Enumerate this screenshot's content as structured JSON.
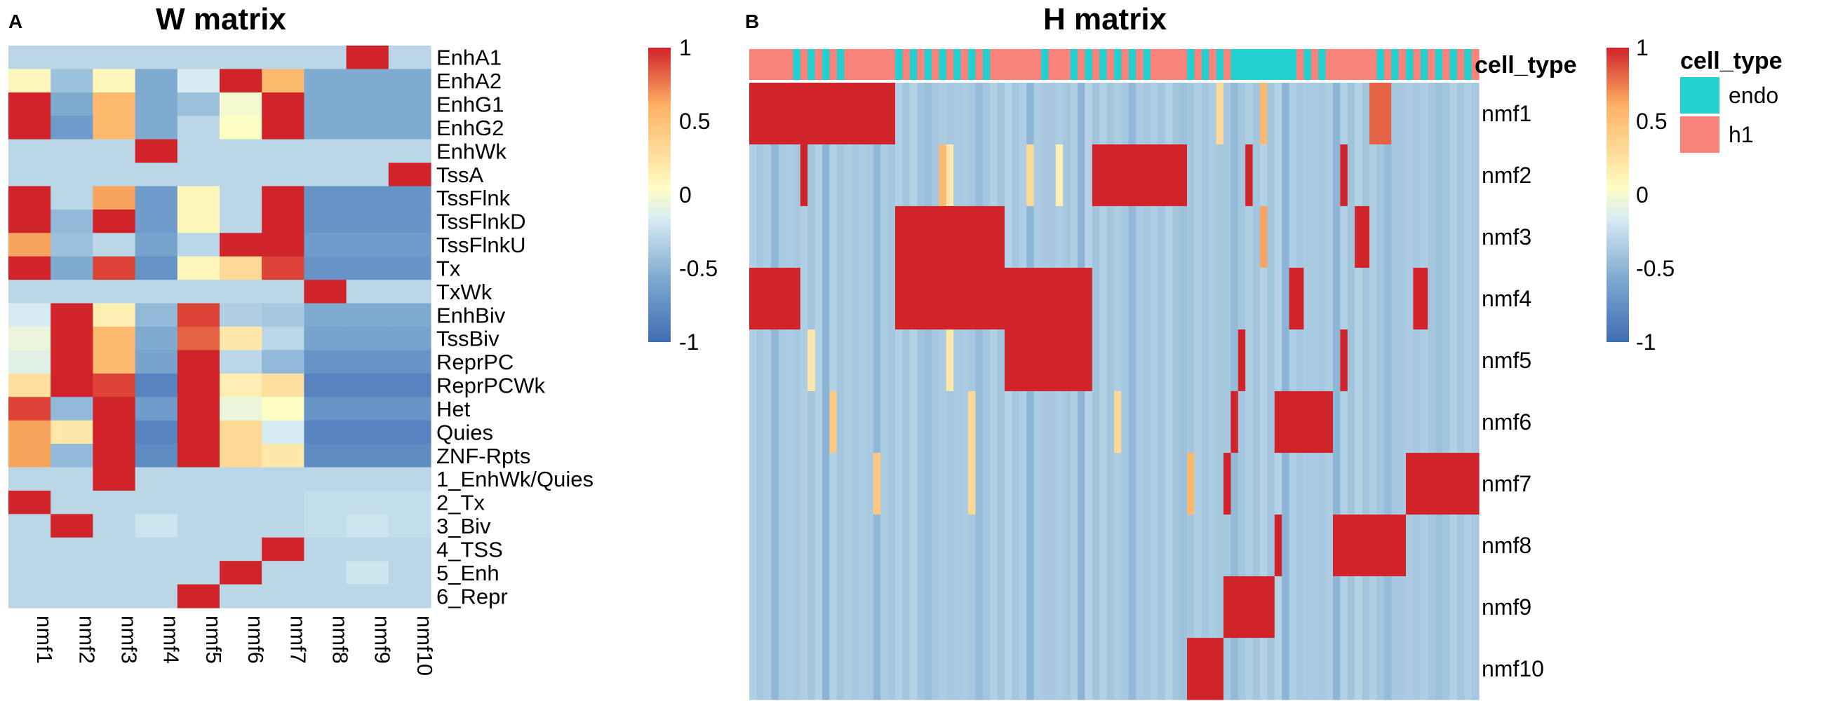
{
  "panel_a": {
    "letter": "A",
    "title": "W matrix"
  },
  "panel_b": {
    "letter": "B",
    "title": "H matrix"
  },
  "colorscale": {
    "stops": [
      "#3f6db3",
      "#7fabd1",
      "#d7ecf2",
      "#fefdc4",
      "#fdb365",
      "#d1232a"
    ],
    "ticks": [
      "1",
      "0.5",
      "0",
      "-0.5",
      "-1"
    ]
  },
  "cell_type_legend": {
    "title": "cell_type",
    "items": [
      {
        "label": "endo",
        "color": "#22cfd1"
      },
      {
        "label": "h1",
        "color": "#f8837b"
      }
    ]
  },
  "chart_data": [
    {
      "type": "heatmap",
      "title": "W matrix",
      "columns": [
        "nmf1",
        "nmf2",
        "nmf3",
        "nmf4",
        "nmf5",
        "nmf6",
        "nmf7",
        "nmf8",
        "nmf9",
        "nmf10"
      ],
      "rows": [
        "EnhA1",
        "EnhA2",
        "EnhG1",
        "EnhG2",
        "EnhWk",
        "TssA",
        "TssFlnk",
        "TssFlnkD",
        "TssFlnkU",
        "Tx",
        "TxWk",
        "EnhBiv",
        "TssBiv",
        "ReprPC",
        "ReprPCWk",
        "Het",
        "Quies",
        "ZNF-Rpts",
        "1_EnhWk/Quies",
        "2_Tx",
        "3_Biv",
        "4_TSS",
        "5_Enh",
        "6_Repr"
      ],
      "values": [
        [
          -0.3,
          -0.3,
          -0.3,
          -0.3,
          -0.3,
          -0.3,
          -0.3,
          -0.3,
          1,
          -0.3
        ],
        [
          0.1,
          -0.45,
          0.1,
          -0.6,
          -0.15,
          1,
          0.5,
          -0.6,
          -0.6,
          -0.6
        ],
        [
          1,
          -0.6,
          0.5,
          -0.6,
          -0.45,
          0,
          1,
          -0.6,
          -0.6,
          -0.6
        ],
        [
          1,
          -0.7,
          0.5,
          -0.6,
          -0.3,
          0.05,
          1,
          -0.6,
          -0.6,
          -0.6
        ],
        [
          -0.3,
          -0.3,
          -0.3,
          1,
          -0.3,
          -0.3,
          -0.3,
          -0.3,
          -0.3,
          -0.3
        ],
        [
          -0.3,
          -0.3,
          -0.3,
          -0.3,
          -0.3,
          -0.3,
          -0.3,
          -0.3,
          -0.3,
          1
        ],
        [
          1,
          -0.3,
          0.6,
          -0.7,
          0.1,
          -0.3,
          1,
          -0.75,
          -0.75,
          -0.75
        ],
        [
          1,
          -0.5,
          1,
          -0.7,
          0.1,
          -0.3,
          1,
          -0.75,
          -0.75,
          -0.75
        ],
        [
          0.6,
          -0.45,
          -0.3,
          -0.65,
          -0.3,
          1,
          1,
          -0.7,
          -0.7,
          -0.7
        ],
        [
          1,
          -0.6,
          0.9,
          -0.75,
          0.1,
          0.3,
          0.9,
          -0.75,
          -0.75,
          -0.75
        ],
        [
          -0.3,
          -0.3,
          -0.3,
          -0.3,
          -0.3,
          -0.3,
          -0.3,
          1,
          -0.3,
          -0.3
        ],
        [
          -0.15,
          1,
          0.15,
          -0.5,
          0.9,
          -0.35,
          -0.4,
          -0.6,
          -0.6,
          -0.6
        ],
        [
          -0.05,
          1,
          0.5,
          -0.6,
          0.8,
          0.2,
          -0.3,
          -0.65,
          -0.65,
          -0.65
        ],
        [
          -0.1,
          1,
          0.5,
          -0.65,
          1,
          -0.3,
          -0.5,
          -0.75,
          -0.75,
          -0.75
        ],
        [
          0.25,
          1,
          0.9,
          -0.85,
          1,
          0.15,
          0.25,
          -0.85,
          -0.85,
          -0.85
        ],
        [
          0.9,
          -0.5,
          1,
          -0.7,
          1,
          -0.05,
          0.05,
          -0.75,
          -0.75,
          -0.75
        ],
        [
          0.6,
          0.2,
          1,
          -0.85,
          1,
          0.3,
          -0.15,
          -0.85,
          -0.85,
          -0.85
        ],
        [
          0.6,
          -0.5,
          1,
          -0.8,
          1,
          0.3,
          0.2,
          -0.8,
          -0.8,
          -0.8
        ],
        [
          -0.3,
          -0.3,
          1,
          -0.3,
          -0.3,
          -0.3,
          -0.3,
          -0.3,
          -0.3,
          -0.3
        ],
        [
          1,
          -0.3,
          -0.3,
          -0.3,
          -0.3,
          -0.3,
          -0.3,
          -0.25,
          -0.25,
          -0.25
        ],
        [
          -0.3,
          1,
          -0.3,
          -0.2,
          -0.3,
          -0.3,
          -0.3,
          -0.25,
          -0.2,
          -0.25
        ],
        [
          -0.3,
          -0.3,
          -0.3,
          -0.3,
          -0.3,
          -0.3,
          1,
          -0.3,
          -0.3,
          -0.3
        ],
        [
          -0.3,
          -0.3,
          -0.3,
          -0.3,
          -0.3,
          1,
          -0.3,
          -0.3,
          -0.2,
          -0.3
        ],
        [
          -0.3,
          -0.3,
          -0.3,
          -0.3,
          1,
          -0.3,
          -0.3,
          -0.3,
          -0.3,
          -0.3
        ]
      ],
      "vlim": [
        -1,
        1
      ]
    },
    {
      "type": "heatmap",
      "title": "H matrix",
      "rows": [
        "nmf1",
        "nmf2",
        "nmf3",
        "nmf4",
        "nmf5",
        "nmf6",
        "nmf7",
        "nmf8",
        "nmf9",
        "nmf10"
      ],
      "annotation_row_label": "cell_type",
      "n_columns": 100,
      "cell_type_segments": [
        {
          "type": "h1",
          "from": 0,
          "to": 6
        },
        {
          "type": "mixed",
          "from": 6,
          "to": 13
        },
        {
          "type": "h1",
          "from": 13,
          "to": 19
        },
        {
          "type": "mixed",
          "from": 19,
          "to": 33
        },
        {
          "type": "h1",
          "from": 33,
          "to": 39
        },
        {
          "type": "mixed",
          "from": 39,
          "to": 42
        },
        {
          "type": "h1",
          "from": 42,
          "to": 44
        },
        {
          "type": "mixed",
          "from": 44,
          "to": 55
        },
        {
          "type": "h1",
          "from": 55,
          "to": 60
        },
        {
          "type": "mixed",
          "from": 60,
          "to": 66
        },
        {
          "type": "endo",
          "from": 66,
          "to": 74
        },
        {
          "type": "mixed",
          "from": 74,
          "to": 80
        },
        {
          "type": "h1",
          "from": 80,
          "to": 85
        },
        {
          "type": "mixed",
          "from": 85,
          "to": 100
        }
      ],
      "high_blocks": [
        {
          "row": "nmf1",
          "from": 0,
          "to": 20
        },
        {
          "row": "nmf2",
          "from": 47,
          "to": 60
        },
        {
          "row": "nmf2",
          "from": 7,
          "to": 8
        },
        {
          "row": "nmf2",
          "from": 68,
          "to": 69
        },
        {
          "row": "nmf2",
          "from": 81,
          "to": 82
        },
        {
          "row": "nmf3",
          "from": 20,
          "to": 35
        },
        {
          "row": "nmf3",
          "from": 83,
          "to": 85
        },
        {
          "row": "nmf4",
          "from": 0,
          "to": 7
        },
        {
          "row": "nmf4",
          "from": 20,
          "to": 35
        },
        {
          "row": "nmf4",
          "from": 35,
          "to": 47
        },
        {
          "row": "nmf4",
          "from": 74,
          "to": 76
        },
        {
          "row": "nmf4",
          "from": 91,
          "to": 93
        },
        {
          "row": "nmf5",
          "from": 35,
          "to": 47
        },
        {
          "row": "nmf5",
          "from": 67,
          "to": 68
        },
        {
          "row": "nmf5",
          "from": 81,
          "to": 82
        },
        {
          "row": "nmf6",
          "from": 72,
          "to": 80
        },
        {
          "row": "nmf6",
          "from": 66,
          "to": 67
        },
        {
          "row": "nmf7",
          "from": 90,
          "to": 100
        },
        {
          "row": "nmf7",
          "from": 65,
          "to": 66
        },
        {
          "row": "nmf8",
          "from": 80,
          "to": 90
        },
        {
          "row": "nmf8",
          "from": 72,
          "to": 73
        },
        {
          "row": "nmf9",
          "from": 65,
          "to": 72
        },
        {
          "row": "nmf10",
          "from": 60,
          "to": 65
        }
      ],
      "moderate_cells": [
        {
          "row": "nmf1",
          "col": 85,
          "value": 0.8
        },
        {
          "row": "nmf1",
          "col": 86,
          "value": 0.8
        },
        {
          "row": "nmf1",
          "col": 87,
          "value": 0.8
        },
        {
          "row": "nmf1",
          "col": 64,
          "value": 0.3
        },
        {
          "row": "nmf1",
          "col": 70,
          "value": 0.5
        },
        {
          "row": "nmf2",
          "col": 26,
          "value": 0.5
        },
        {
          "row": "nmf2",
          "col": 27,
          "value": 0.2
        },
        {
          "row": "nmf2",
          "col": 38,
          "value": 0.3
        },
        {
          "row": "nmf2",
          "col": 42,
          "value": 0.15
        },
        {
          "row": "nmf3",
          "col": 70,
          "value": 0.6
        },
        {
          "row": "nmf5",
          "col": 8,
          "value": 0.2
        },
        {
          "row": "nmf5",
          "col": 27,
          "value": 0.2
        },
        {
          "row": "nmf6",
          "col": 11,
          "value": 0.4
        },
        {
          "row": "nmf6",
          "col": 30,
          "value": 0.3
        },
        {
          "row": "nmf6",
          "col": 50,
          "value": 0.3
        },
        {
          "row": "nmf7",
          "col": 17,
          "value": 0.4
        },
        {
          "row": "nmf7",
          "col": 30,
          "value": 0.3
        },
        {
          "row": "nmf7",
          "col": 60,
          "value": 0.5
        }
      ],
      "vlim": [
        -1,
        1
      ]
    }
  ]
}
